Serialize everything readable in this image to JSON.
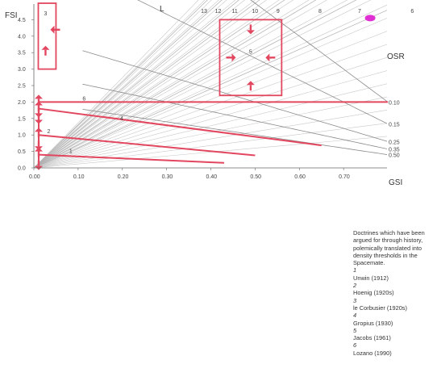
{
  "chart_data": {
    "type": "line",
    "title": "",
    "xlabel": "GSI",
    "ylabel": "FSI",
    "xlim": [
      0,
      0.8
    ],
    "ylim": [
      0,
      5
    ],
    "x_ticks": [
      "0.00",
      "0.10",
      "0.20",
      "0.30",
      "0.40",
      "0.50",
      "0.60",
      "0.70"
    ],
    "y_ticks": [
      "0.0",
      "0.5",
      "1.0",
      "1.5",
      "2.0",
      "2.5",
      "3.0",
      "3.5",
      "4.0",
      "4.5"
    ],
    "layers_label": "L",
    "layer_lines": [
      {
        "label": "13",
        "value": 13
      },
      {
        "label": "12",
        "value": 12
      },
      {
        "label": "11",
        "value": 11
      },
      {
        "label": "10",
        "value": 10
      },
      {
        "label": "9",
        "value": 9
      },
      {
        "label": "8",
        "value": 8
      },
      {
        "label": "7",
        "value": 7
      },
      {
        "label": "6",
        "value": 6
      }
    ],
    "osr_label": "OSR",
    "osr_lines": [
      {
        "label": "0.10",
        "value": 0.1
      },
      {
        "label": "0.15",
        "value": 0.15
      },
      {
        "label": "0.25",
        "value": 0.25
      },
      {
        "label": "0.35",
        "value": 0.35
      },
      {
        "label": "0.50",
        "value": 0.5
      }
    ],
    "doctrines": [
      {
        "label": "1",
        "kind": "band",
        "gsi_max": 0.43,
        "fsi_max": 0.4
      },
      {
        "label": "2",
        "kind": "band",
        "gsi_max": 0.5,
        "fsi_max": 1.0
      },
      {
        "label": "3",
        "kind": "box",
        "gsi_range": [
          0.01,
          0.05
        ],
        "fsi_range": [
          3.0,
          5.0
        ]
      },
      {
        "label": "4",
        "kind": "band",
        "gsi_max": 0.65,
        "fsi_max": 1.8
      },
      {
        "label": "5",
        "kind": "box",
        "gsi_range": [
          0.42,
          0.56
        ],
        "fsi_range": [
          2.2,
          4.5
        ]
      },
      {
        "label": "6",
        "kind": "band",
        "gsi_max": 0.8,
        "fsi_max": 2.0
      }
    ],
    "marker": {
      "gsi": 0.76,
      "fsi": 4.55,
      "color": "#e02fd2"
    },
    "accent_color": "#e2475f"
  },
  "caption": {
    "intro": "Doctrines which have been argued for through history, polemically translated into density thresholds in the Spacemate.",
    "entries": [
      {
        "num": "1",
        "text": "Unwin (1912)"
      },
      {
        "num": "2",
        "text": "Hoenig (1920s)"
      },
      {
        "num": "3",
        "text": "le Corbusier (1920s)"
      },
      {
        "num": "4",
        "text": "Gropius (1930)"
      },
      {
        "num": "5",
        "text": "Jacobs (1961)"
      },
      {
        "num": "6",
        "text": "Lozano (1990)"
      }
    ]
  }
}
